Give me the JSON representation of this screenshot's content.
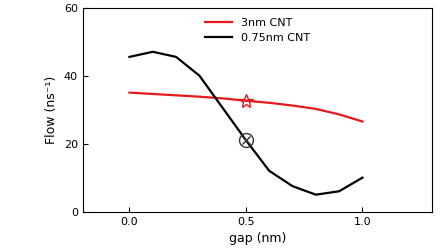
{
  "chart_data": {
    "type": "line",
    "x_label": "gap (nm)",
    "y_label": "Flow (ns⁻¹)",
    "xlim": [
      -0.2,
      1.3
    ],
    "xticks": [
      {
        "value": 0.0,
        "label": "0.0"
      },
      {
        "value": 0.5,
        "label": "0.5"
      },
      {
        "value": 1.0,
        "label": "1.0"
      }
    ],
    "ylim": [
      0,
      60
    ],
    "yticks": [
      0,
      20,
      40,
      60
    ],
    "legend": "upper center",
    "series": [
      {
        "name": "3nm CNT",
        "color": "#e8191c",
        "x": [
          0.0,
          0.1,
          0.2,
          0.3,
          0.4,
          0.5,
          0.6,
          0.7,
          0.8,
          0.9,
          1.0
        ],
        "values": [
          35.0,
          34.6,
          34.2,
          33.8,
          33.3,
          32.6,
          32.0,
          31.2,
          30.2,
          28.6,
          26.5
        ]
      },
      {
        "name": "0.75nm CNT",
        "color": "#000000",
        "x": [
          0.0,
          0.1,
          0.2,
          0.3,
          0.4,
          0.5,
          0.6,
          0.7,
          0.8,
          0.9,
          1.0
        ],
        "values": [
          45.5,
          47.0,
          45.5,
          40.0,
          30.5,
          21.0,
          12.0,
          7.5,
          5.0,
          6.0,
          10.0
        ]
      }
    ],
    "highlights": [
      {
        "x": 0.5,
        "y": 32.6,
        "marker": "star",
        "color": "#e8191c"
      },
      {
        "x": 0.5,
        "y": 21.0,
        "marker": "circled_x",
        "color": "#333333"
      }
    ]
  }
}
